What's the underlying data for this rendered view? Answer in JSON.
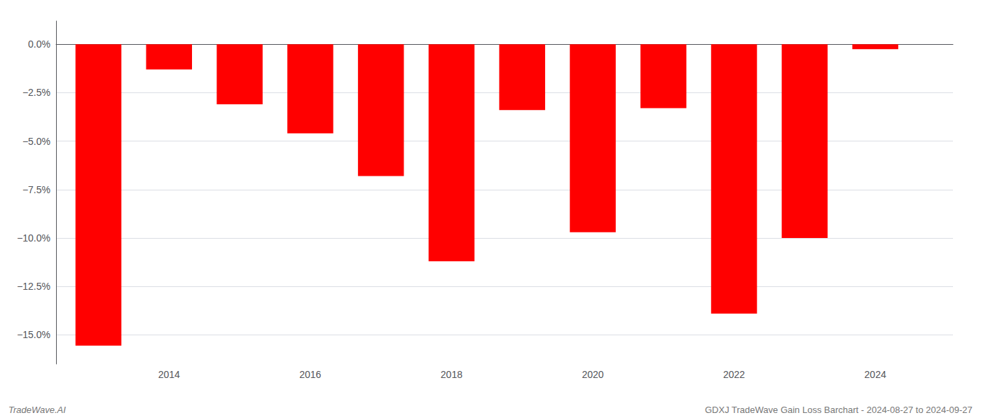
{
  "chart_data": {
    "type": "bar",
    "x": [
      2013,
      2014,
      2015,
      2016,
      2017,
      2018,
      2019,
      2020,
      2021,
      2022,
      2023,
      2024
    ],
    "values": [
      -15.55,
      -1.3,
      -3.1,
      -4.6,
      -6.8,
      -11.2,
      -3.4,
      -9.7,
      -3.3,
      -13.9,
      -10.0,
      -0.25
    ],
    "color": "#ff0000",
    "xlim": [
      2012.4,
      2025.1
    ],
    "xticks": [
      2014,
      2016,
      2018,
      2020,
      2022,
      2024
    ],
    "ylim": [
      -16.5,
      1.2
    ],
    "yticks": [
      {
        "value": 0.0,
        "label": "0.0%"
      },
      {
        "value": -2.5,
        "label": "−2.5%"
      },
      {
        "value": -5.0,
        "label": "−5.0%"
      },
      {
        "value": -7.5,
        "label": "−7.5%"
      },
      {
        "value": -10.0,
        "label": "−10.0%"
      },
      {
        "value": -12.5,
        "label": "−12.5%"
      },
      {
        "value": -15.0,
        "label": "−15.0%"
      }
    ],
    "grid": true,
    "annotations": [
      "TradeWave.AI",
      "GDXJ TradeWave Gain Loss Barchart - 2024-08-27 to 2024-09-27"
    ]
  }
}
